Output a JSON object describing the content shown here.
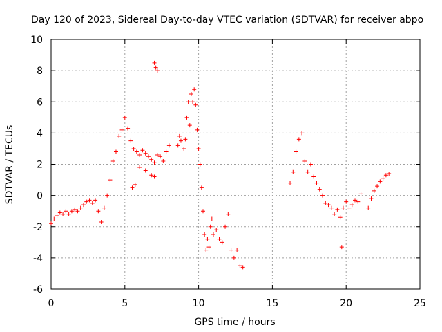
{
  "chart_data": {
    "type": "scatter",
    "title": "Day 120 of 2023, Sidereal Day-to-day VTEC variation (SDTVAR) for receiver abpo",
    "xlabel": "GPS time / hours",
    "ylabel": "SDTVAR / TECUs",
    "xlim": [
      0,
      25
    ],
    "ylim": [
      -6,
      10
    ],
    "x_ticks": [
      0,
      5,
      10,
      15,
      20,
      25
    ],
    "y_ticks": [
      -6,
      -4,
      -2,
      0,
      2,
      4,
      6,
      8,
      10
    ],
    "grid": true,
    "marker": "+",
    "series_color": "#ff0000",
    "series": [
      {
        "name": "SDTVAR",
        "x": [
          0.0,
          0.2,
          0.4,
          0.6,
          0.8,
          1.0,
          1.2,
          1.4,
          1.6,
          1.8,
          2.0,
          2.2,
          2.4,
          2.6,
          2.8,
          3.0,
          3.2,
          3.4,
          3.6,
          3.8,
          4.0,
          4.2,
          4.4,
          4.6,
          4.8,
          5.0,
          5.2,
          5.4,
          5.6,
          5.8,
          6.0,
          6.2,
          6.4,
          6.6,
          6.8,
          7.0,
          7.2,
          7.4,
          7.6,
          7.8,
          8.0,
          5.5,
          5.7,
          6.0,
          6.4,
          6.8,
          7.0,
          7.0,
          7.1,
          7.2,
          8.6,
          8.7,
          8.8,
          9.0,
          9.1,
          9.2,
          9.3,
          9.4,
          9.5,
          9.6,
          9.7,
          9.8,
          9.9,
          10.0,
          10.1,
          10.2,
          10.3,
          10.4,
          10.5,
          10.6,
          10.7,
          10.8,
          10.9,
          11.0,
          11.2,
          11.4,
          11.6,
          11.8,
          12.0,
          12.2,
          12.4,
          12.6,
          12.8,
          13.0,
          16.2,
          16.4,
          16.6,
          16.8,
          17.0,
          17.2,
          17.4,
          17.6,
          17.8,
          18.0,
          18.2,
          18.4,
          18.6,
          18.8,
          19.0,
          19.2,
          19.4,
          19.6,
          19.8,
          20.0,
          20.2,
          20.4,
          20.6,
          20.8,
          21.0,
          19.7,
          21.5,
          21.7,
          21.9,
          22.1,
          22.3,
          22.5,
          22.7,
          22.9
        ],
        "y": [
          -1.8,
          -1.5,
          -1.3,
          -1.1,
          -1.2,
          -1.0,
          -1.2,
          -1.0,
          -0.9,
          -1.0,
          -0.8,
          -0.6,
          -0.4,
          -0.3,
          -0.5,
          -0.3,
          -1.0,
          -1.7,
          -0.8,
          0.0,
          1.0,
          2.2,
          2.8,
          3.8,
          4.2,
          5.0,
          4.3,
          3.5,
          3.0,
          2.8,
          2.6,
          2.9,
          2.7,
          2.5,
          2.3,
          2.1,
          2.6,
          2.5,
          2.2,
          2.8,
          3.2,
          0.5,
          0.7,
          1.8,
          1.6,
          1.3,
          1.2,
          8.5,
          8.2,
          8.0,
          3.2,
          3.8,
          3.5,
          3.0,
          3.6,
          5.0,
          6.0,
          4.5,
          6.5,
          6.0,
          6.8,
          5.8,
          4.2,
          3.0,
          2.0,
          0.5,
          -1.0,
          -2.5,
          -3.5,
          -2.8,
          -3.3,
          -2.0,
          -1.5,
          -2.5,
          -2.2,
          -2.8,
          -3.0,
          -2.0,
          -1.2,
          -3.5,
          -4.0,
          -3.5,
          -4.5,
          -4.6,
          0.8,
          1.5,
          2.8,
          3.6,
          4.0,
          2.2,
          1.5,
          2.0,
          1.2,
          0.8,
          0.4,
          0.0,
          -0.5,
          -0.6,
          -0.8,
          -1.2,
          -0.9,
          -1.4,
          -0.8,
          -0.4,
          -0.8,
          -0.6,
          -0.3,
          -0.4,
          0.1,
          -3.3,
          -0.8,
          -0.2,
          0.3,
          0.6,
          0.9,
          1.1,
          1.3,
          1.4
        ]
      }
    ]
  }
}
